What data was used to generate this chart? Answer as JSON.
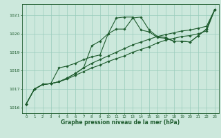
{
  "xlabel": "Graphe pression niveau de la mer (hPa)",
  "ylim": [
    1015.7,
    1021.6
  ],
  "xlim": [
    -0.5,
    23.5
  ],
  "yticks": [
    1016,
    1017,
    1018,
    1019,
    1020,
    1021
  ],
  "xticks": [
    0,
    1,
    2,
    3,
    4,
    5,
    6,
    7,
    8,
    9,
    10,
    11,
    12,
    13,
    14,
    15,
    16,
    17,
    18,
    19,
    20,
    21,
    22,
    23
  ],
  "bg_color": "#cce8dc",
  "grid_color": "#99ccbb",
  "line_color": "#1e5c2e",
  "line1": [
    1016.2,
    1017.0,
    1017.25,
    1017.3,
    1017.4,
    1017.6,
    1017.85,
    1018.15,
    1019.35,
    1019.6,
    1020.0,
    1020.25,
    1020.25,
    1020.85,
    1020.9,
    1020.2,
    1019.85,
    1019.8,
    1019.6,
    1019.6,
    1019.55,
    1019.9,
    1020.25,
    1021.3
  ],
  "line2": [
    1016.2,
    1017.0,
    1017.25,
    1017.3,
    1018.15,
    1018.25,
    1018.4,
    1018.6,
    1018.75,
    1018.85,
    1020.0,
    1020.85,
    1020.9,
    1020.9,
    1020.2,
    1020.1,
    1019.8,
    1019.75,
    1019.6,
    1019.6,
    1019.55,
    1019.9,
    1020.25,
    1021.3
  ],
  "line3": [
    1016.2,
    1017.0,
    1017.25,
    1017.3,
    1017.4,
    1017.6,
    1017.85,
    1018.15,
    1018.4,
    1018.6,
    1018.8,
    1019.0,
    1019.2,
    1019.4,
    1019.55,
    1019.7,
    1019.85,
    1019.95,
    1020.05,
    1020.15,
    1020.2,
    1020.3,
    1020.4,
    1021.3
  ],
  "line4": [
    1016.2,
    1017.0,
    1017.25,
    1017.3,
    1017.4,
    1017.55,
    1017.75,
    1017.95,
    1018.15,
    1018.3,
    1018.5,
    1018.65,
    1018.8,
    1019.0,
    1019.15,
    1019.3,
    1019.5,
    1019.65,
    1019.75,
    1019.85,
    1019.9,
    1020.0,
    1020.15,
    1021.3
  ]
}
